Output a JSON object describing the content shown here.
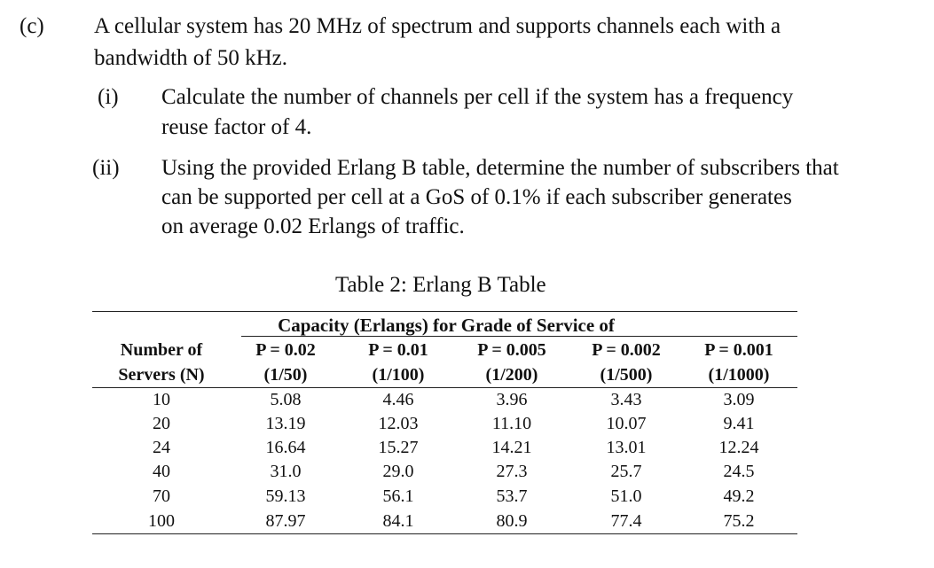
{
  "question": {
    "label": "(c)",
    "lines": [
      "A cellular system has 20 MHz of spectrum and supports channels each with a",
      "bandwidth of 50 kHz."
    ],
    "parts": [
      {
        "label": "(i)",
        "lines": [
          "Calculate the number of channels per cell if the system has a frequency",
          "reuse factor of 4."
        ]
      },
      {
        "label": "(ii)",
        "lines": [
          "Using the provided Erlang B table, determine the number of subscribers that",
          "can be supported per cell at a GoS of 0.1% if each subscriber generates",
          "on average 0.02 Erlangs of traffic."
        ]
      }
    ]
  },
  "table": {
    "caption": "Table 2: Erlang B Table",
    "group_header": "Capacity (Erlangs) for Grade of Service of",
    "row_header": [
      "Number of",
      "Servers (N)"
    ],
    "columns": [
      {
        "p": "P = 0.02",
        "frac": "(1/50)"
      },
      {
        "p": "P = 0.01",
        "frac": "(1/100)"
      },
      {
        "p": "P = 0.005",
        "frac": "(1/200)"
      },
      {
        "p": "P = 0.002",
        "frac": "(1/500)"
      },
      {
        "p": "P = 0.001",
        "frac": "(1/1000)"
      }
    ],
    "rows": [
      {
        "n": "10",
        "values": [
          "5.08",
          "4.46",
          "3.96",
          "3.43",
          "3.09"
        ]
      },
      {
        "n": "20",
        "values": [
          "13.19",
          "12.03",
          "11.10",
          "10.07",
          "9.41"
        ]
      },
      {
        "n": "24",
        "values": [
          "16.64",
          "15.27",
          "14.21",
          "13.01",
          "12.24"
        ]
      },
      {
        "n": "40",
        "values": [
          "31.0",
          "29.0",
          "27.3",
          "25.7",
          "24.5"
        ]
      },
      {
        "n": "70",
        "values": [
          "59.13",
          "56.1",
          "53.7",
          "51.0",
          "49.2"
        ]
      },
      {
        "n": "100",
        "values": [
          "87.97",
          "84.1",
          "80.9",
          "77.4",
          "75.2"
        ]
      }
    ]
  }
}
